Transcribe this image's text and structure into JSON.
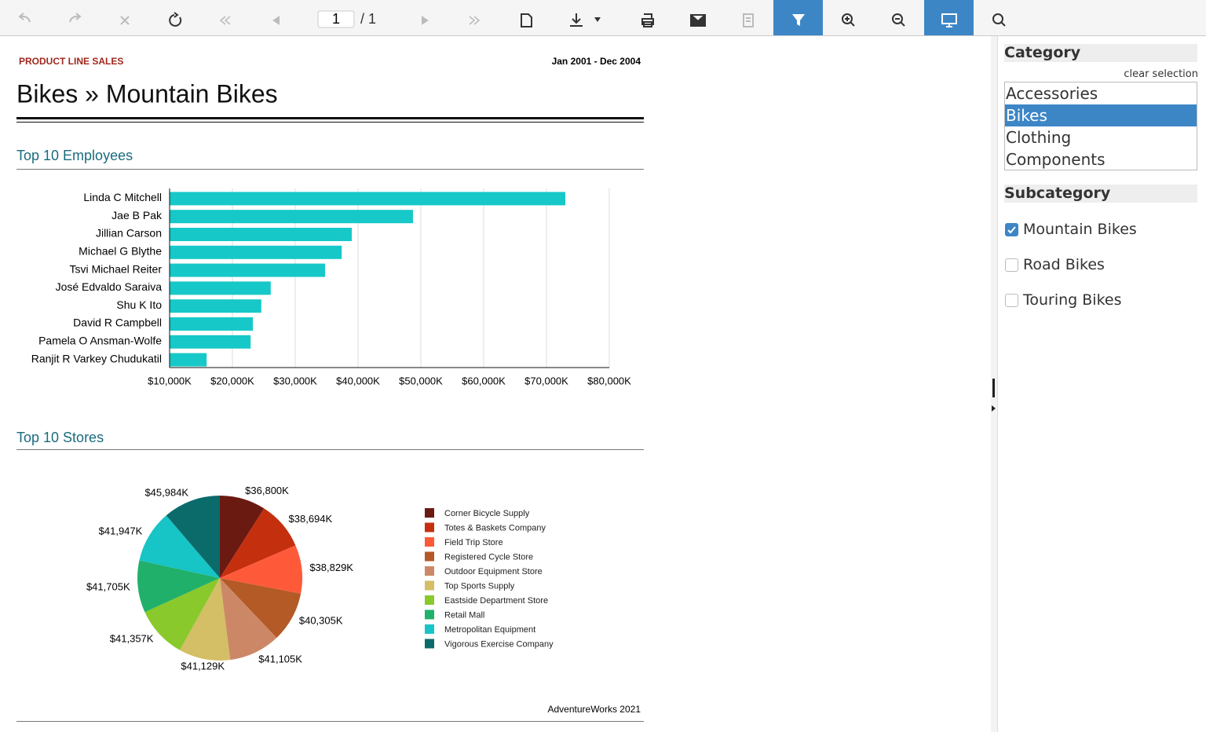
{
  "toolbar": {
    "page": "1",
    "page_count": "/ 1"
  },
  "report": {
    "label": "PRODUCT LINE SALES",
    "date_range": "Jan 2001 - Dec 2004",
    "title": "Bikes » Mountain Bikes",
    "footer": "AdventureWorks 2021"
  },
  "chart_data": [
    {
      "type": "bar",
      "orientation": "horizontal",
      "title": "Top 10 Employees",
      "color": "#17c8c8",
      "grid": true,
      "categories": [
        "Linda C Mitchell",
        "Jae B Pak",
        "Jillian  Carson",
        "Michael G Blythe",
        "Tsvi Michael Reiter",
        "José Edvaldo Saraiva",
        "Shu K Ito",
        "David R Campbell",
        "Pamela O Ansman-Wolfe",
        "Ranjit R Varkey Chudukatil"
      ],
      "values": [
        73000,
        48750,
        39000,
        37400,
        34750,
        26100,
        24600,
        23250,
        22900,
        15900
      ],
      "xlim": [
        10000,
        80000
      ],
      "xticks": [
        {
          "value": 10000,
          "label": "$10,000K"
        },
        {
          "value": 20000,
          "label": "$20,000K"
        },
        {
          "value": 30000,
          "label": "$30,000K"
        },
        {
          "value": 40000,
          "label": "$40,000K"
        },
        {
          "value": 50000,
          "label": "$50,000K"
        },
        {
          "value": 60000,
          "label": "$60,000K"
        },
        {
          "value": 70000,
          "label": "$70,000K"
        },
        {
          "value": 80000,
          "label": "$80,000K"
        }
      ]
    },
    {
      "type": "pie",
      "title": "Top 10 Stores",
      "categories": [
        "Corner Bicycle Supply",
        "Totes & Baskets Company",
        "Field Trip Store",
        "Registered Cycle Store",
        "Outdoor Equipment Store",
        "Top Sports Supply",
        "Eastside Department Store",
        "Retail Mall",
        "Metropolitan Equipment",
        "Vigorous Exercise Company"
      ],
      "values": [
        36800,
        38694,
        38829,
        40305,
        41105,
        41129,
        41357,
        41705,
        41947,
        45984
      ],
      "value_labels": [
        "$36,800K",
        "$38,694K",
        "$38,829K",
        "$40,305K",
        "$41,105K",
        "$41,129K",
        "$41,357K",
        "$41,705K",
        "$41,947K",
        "$45,984K"
      ],
      "colors": [
        "#6b1a12",
        "#c4300e",
        "#fe5a3a",
        "#b35a26",
        "#cc8866",
        "#d4be66",
        "#8ac92b",
        "#21b06a",
        "#17c4c6",
        "#0b6b6b"
      ]
    }
  ],
  "filters": {
    "category": {
      "title": "Category",
      "clear": "clear selection",
      "items": [
        {
          "label": "Accessories",
          "selected": false
        },
        {
          "label": "Bikes",
          "selected": true
        },
        {
          "label": "Clothing",
          "selected": false
        },
        {
          "label": "Components",
          "selected": false
        }
      ]
    },
    "subcategory": {
      "title": "Subcategory",
      "items": [
        {
          "label": "Mountain Bikes",
          "checked": true
        },
        {
          "label": "Road Bikes",
          "checked": false
        },
        {
          "label": "Touring Bikes",
          "checked": false
        }
      ]
    }
  }
}
